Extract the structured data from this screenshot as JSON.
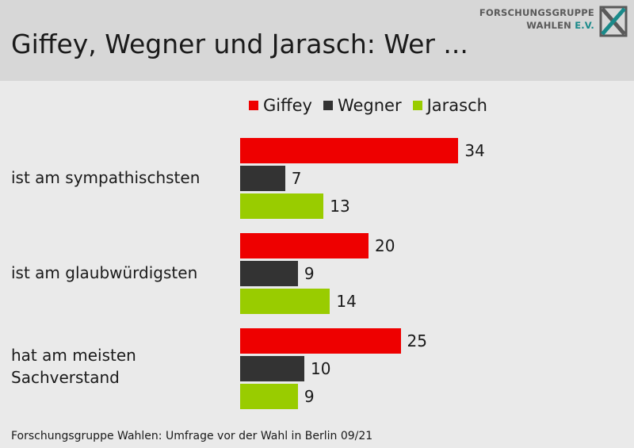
{
  "title": "Giffey, Wegner und Jarasch: Wer ...",
  "logo": {
    "line1": "FORSCHUNGSGRUPPE",
    "line2": "WAHLEN",
    "line2_suffix": "E.V."
  },
  "footnote": "Forschungsgruppe Wahlen: Umfrage vor der Wahl in Berlin 09/21",
  "chart_data": {
    "type": "bar",
    "orientation": "horizontal",
    "categories": [
      "ist am sympathischsten",
      "ist am glaubwürdigsten",
      "hat am meisten\nSachverstand"
    ],
    "series": [
      {
        "name": "Giffey",
        "color": "#ee0000",
        "values": [
          34,
          20,
          25
        ]
      },
      {
        "name": "Wegner",
        "color": "#333333",
        "values": [
          7,
          9,
          10
        ]
      },
      {
        "name": "Jarasch",
        "color": "#99cc00",
        "values": [
          13,
          14,
          9
        ]
      }
    ],
    "legend_position": "top",
    "grid": false,
    "data_labels": true
  }
}
